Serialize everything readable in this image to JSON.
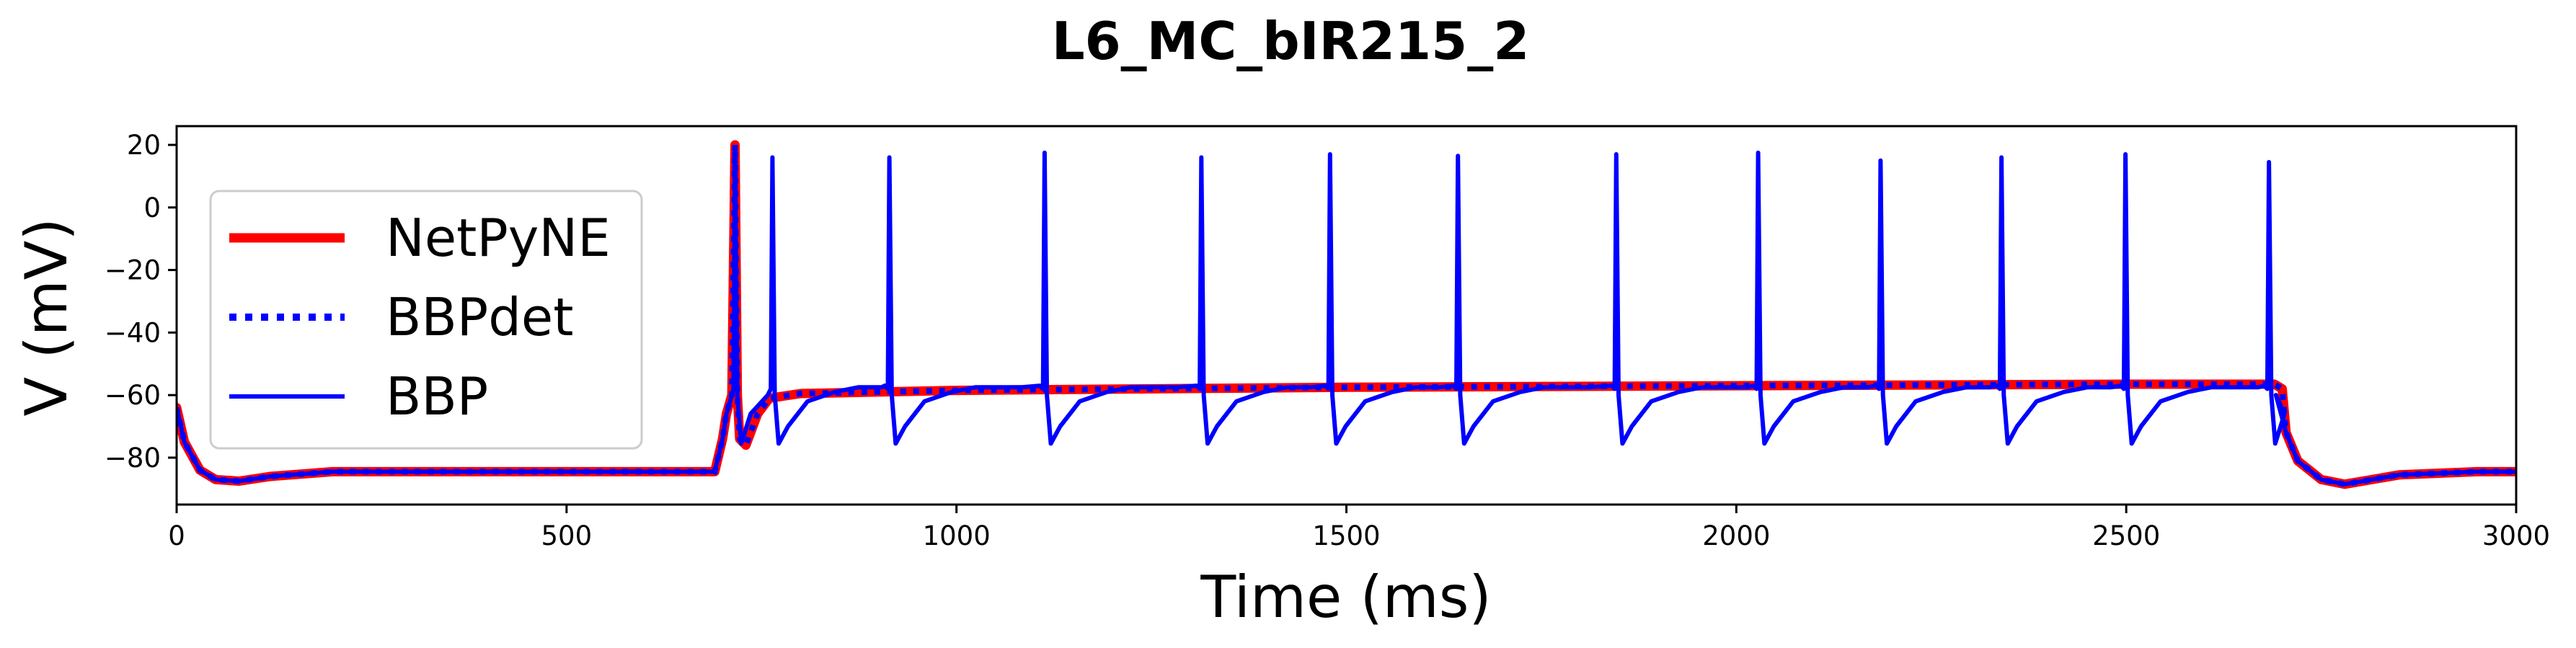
{
  "chart_data": {
    "type": "line",
    "title": "L6_MC_bIR215_2",
    "xlabel": "Time (ms)",
    "ylabel": "V (mV)",
    "xlim": [
      0,
      3000
    ],
    "ylim": [
      -95,
      26
    ],
    "xticks": [
      0,
      500,
      1000,
      1500,
      2000,
      2500,
      3000
    ],
    "yticks": [
      20,
      0,
      -20,
      -40,
      -60,
      -80
    ],
    "xtick_labels": [
      "0",
      "500",
      "1000",
      "1500",
      "2000",
      "2500",
      "3000"
    ],
    "ytick_labels": [
      "20",
      "0",
      "−20",
      "−40",
      "−60",
      "−80"
    ],
    "grid": false,
    "legend_position": "left",
    "series": [
      {
        "name": "NetPyNE",
        "color": "#ff0000",
        "style": "solid-thick",
        "x": [
          0,
          10,
          30,
          50,
          80,
          120,
          200,
          300,
          500,
          690,
          700,
          705,
          712,
          716,
          719,
          722,
          730,
          745,
          760,
          800,
          1000,
          1500,
          2000,
          2500,
          2690,
          2700,
          2705,
          2720,
          2750,
          2780,
          2850,
          2950,
          3000
        ],
        "y": [
          -64,
          -75,
          -84,
          -87,
          -87.5,
          -86,
          -84.5,
          -84.5,
          -84.5,
          -84.5,
          -74,
          -66,
          -60,
          20,
          -60,
          -74,
          -76,
          -66,
          -61,
          -59.5,
          -58.5,
          -57.5,
          -57,
          -56.5,
          -56.5,
          -58,
          -72,
          -81,
          -87,
          -88.5,
          -85.5,
          -84.5,
          -84.5
        ]
      },
      {
        "name": "BBPdet",
        "color": "#0000ff",
        "style": "dotted",
        "x": [
          0,
          10,
          30,
          50,
          80,
          120,
          200,
          300,
          500,
          690,
          700,
          705,
          712,
          716,
          719,
          722,
          730,
          745,
          760,
          800,
          1000,
          1500,
          2000,
          2500,
          2690,
          2700,
          2705,
          2720,
          2750,
          2780,
          2850,
          2950,
          3000
        ],
        "y": [
          -64,
          -75,
          -84,
          -87,
          -87.5,
          -86,
          -84.5,
          -84.5,
          -84.5,
          -84.5,
          -74,
          -66,
          -60,
          20,
          -60,
          -74,
          -76,
          -66,
          -61,
          -59.5,
          -58.5,
          -57.5,
          -57,
          -56.5,
          -56.5,
          -58,
          -72,
          -81,
          -87,
          -88.5,
          -85.5,
          -84.5,
          -84.5
        ]
      },
      {
        "name": "BBP",
        "color": "#0000ff",
        "style": "solid",
        "spike_times": [
          716,
          764,
          914,
          1113,
          1314,
          1479,
          1643,
          1846,
          2028,
          2185,
          2340,
          2499,
          2683
        ],
        "spike_peaks": [
          18,
          16,
          16,
          17.5,
          16,
          17,
          16.5,
          17,
          17.5,
          15,
          16,
          17,
          14.5
        ],
        "ahp_min": -75.5,
        "plateau": -57
      }
    ]
  }
}
